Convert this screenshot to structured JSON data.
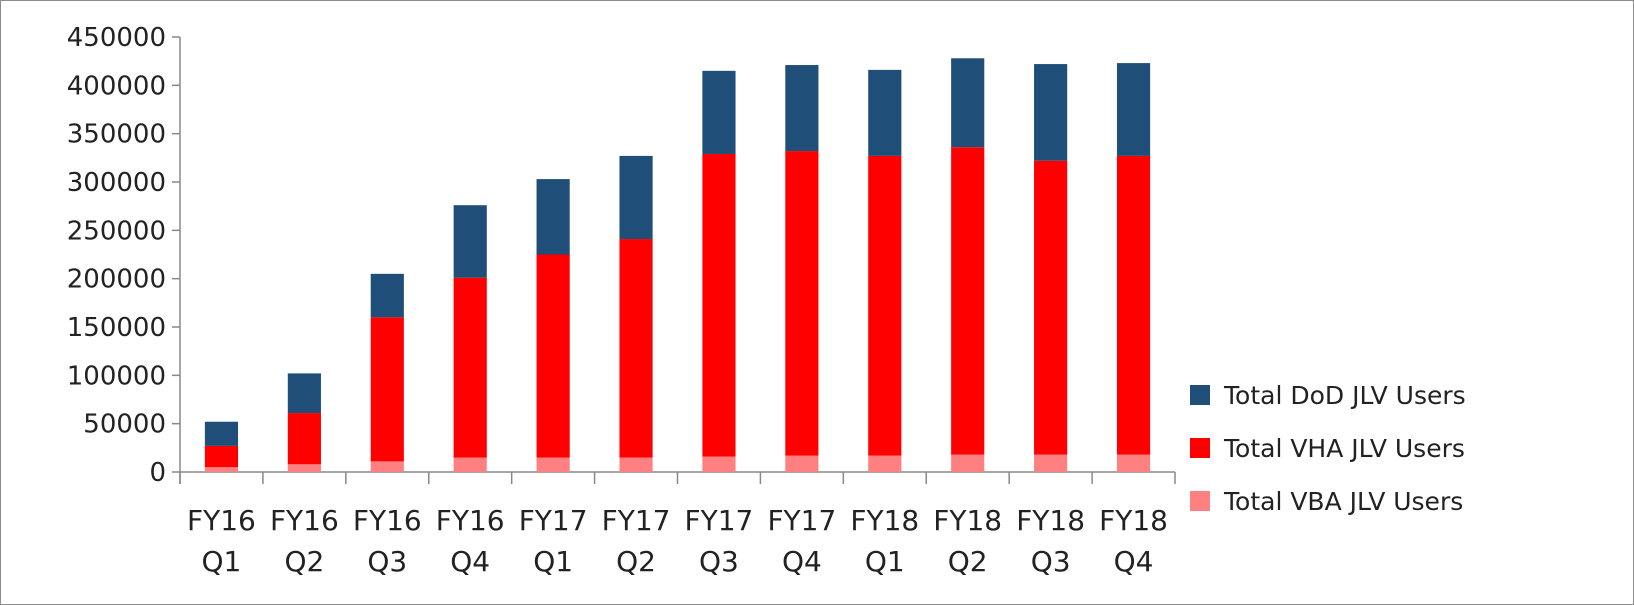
{
  "chart_data": {
    "type": "bar",
    "stacked": true,
    "title": "",
    "xlabel": "",
    "ylabel": "",
    "ylim": [
      0,
      450000
    ],
    "yticks": [
      0,
      50000,
      100000,
      150000,
      200000,
      250000,
      300000,
      350000,
      400000,
      450000
    ],
    "grid": false,
    "legend_position": "right",
    "categories": [
      [
        "FY16",
        "Q1"
      ],
      [
        "FY16",
        "Q2"
      ],
      [
        "FY16",
        "Q3"
      ],
      [
        "FY16",
        "Q4"
      ],
      [
        "FY17",
        "Q1"
      ],
      [
        "FY17",
        "Q2"
      ],
      [
        "FY17",
        "Q3"
      ],
      [
        "FY17",
        "Q4"
      ],
      [
        "FY18",
        "Q1"
      ],
      [
        "FY18",
        "Q2"
      ],
      [
        "FY18",
        "Q3"
      ],
      [
        "FY18",
        "Q4"
      ]
    ],
    "series": [
      {
        "name": "Total VBA JLV Users",
        "color": "#ff8080",
        "values": [
          5000,
          8000,
          11000,
          15000,
          15000,
          15000,
          16000,
          17000,
          17000,
          18000,
          18000,
          18000
        ]
      },
      {
        "name": "Total VHA JLV Users",
        "color": "#ff0000",
        "values": [
          22000,
          53000,
          149000,
          186000,
          210000,
          226000,
          313000,
          315000,
          310000,
          318000,
          304000,
          309000
        ]
      },
      {
        "name": "Total DoD JLV Users",
        "color": "#1f4e79",
        "values": [
          25000,
          41000,
          45000,
          75000,
          78000,
          86000,
          86000,
          89000,
          89000,
          92000,
          100000,
          96000
        ]
      }
    ],
    "legend_order": [
      "Total DoD JLV Users",
      "Total VHA JLV Users",
      "Total VBA JLV Users"
    ]
  }
}
